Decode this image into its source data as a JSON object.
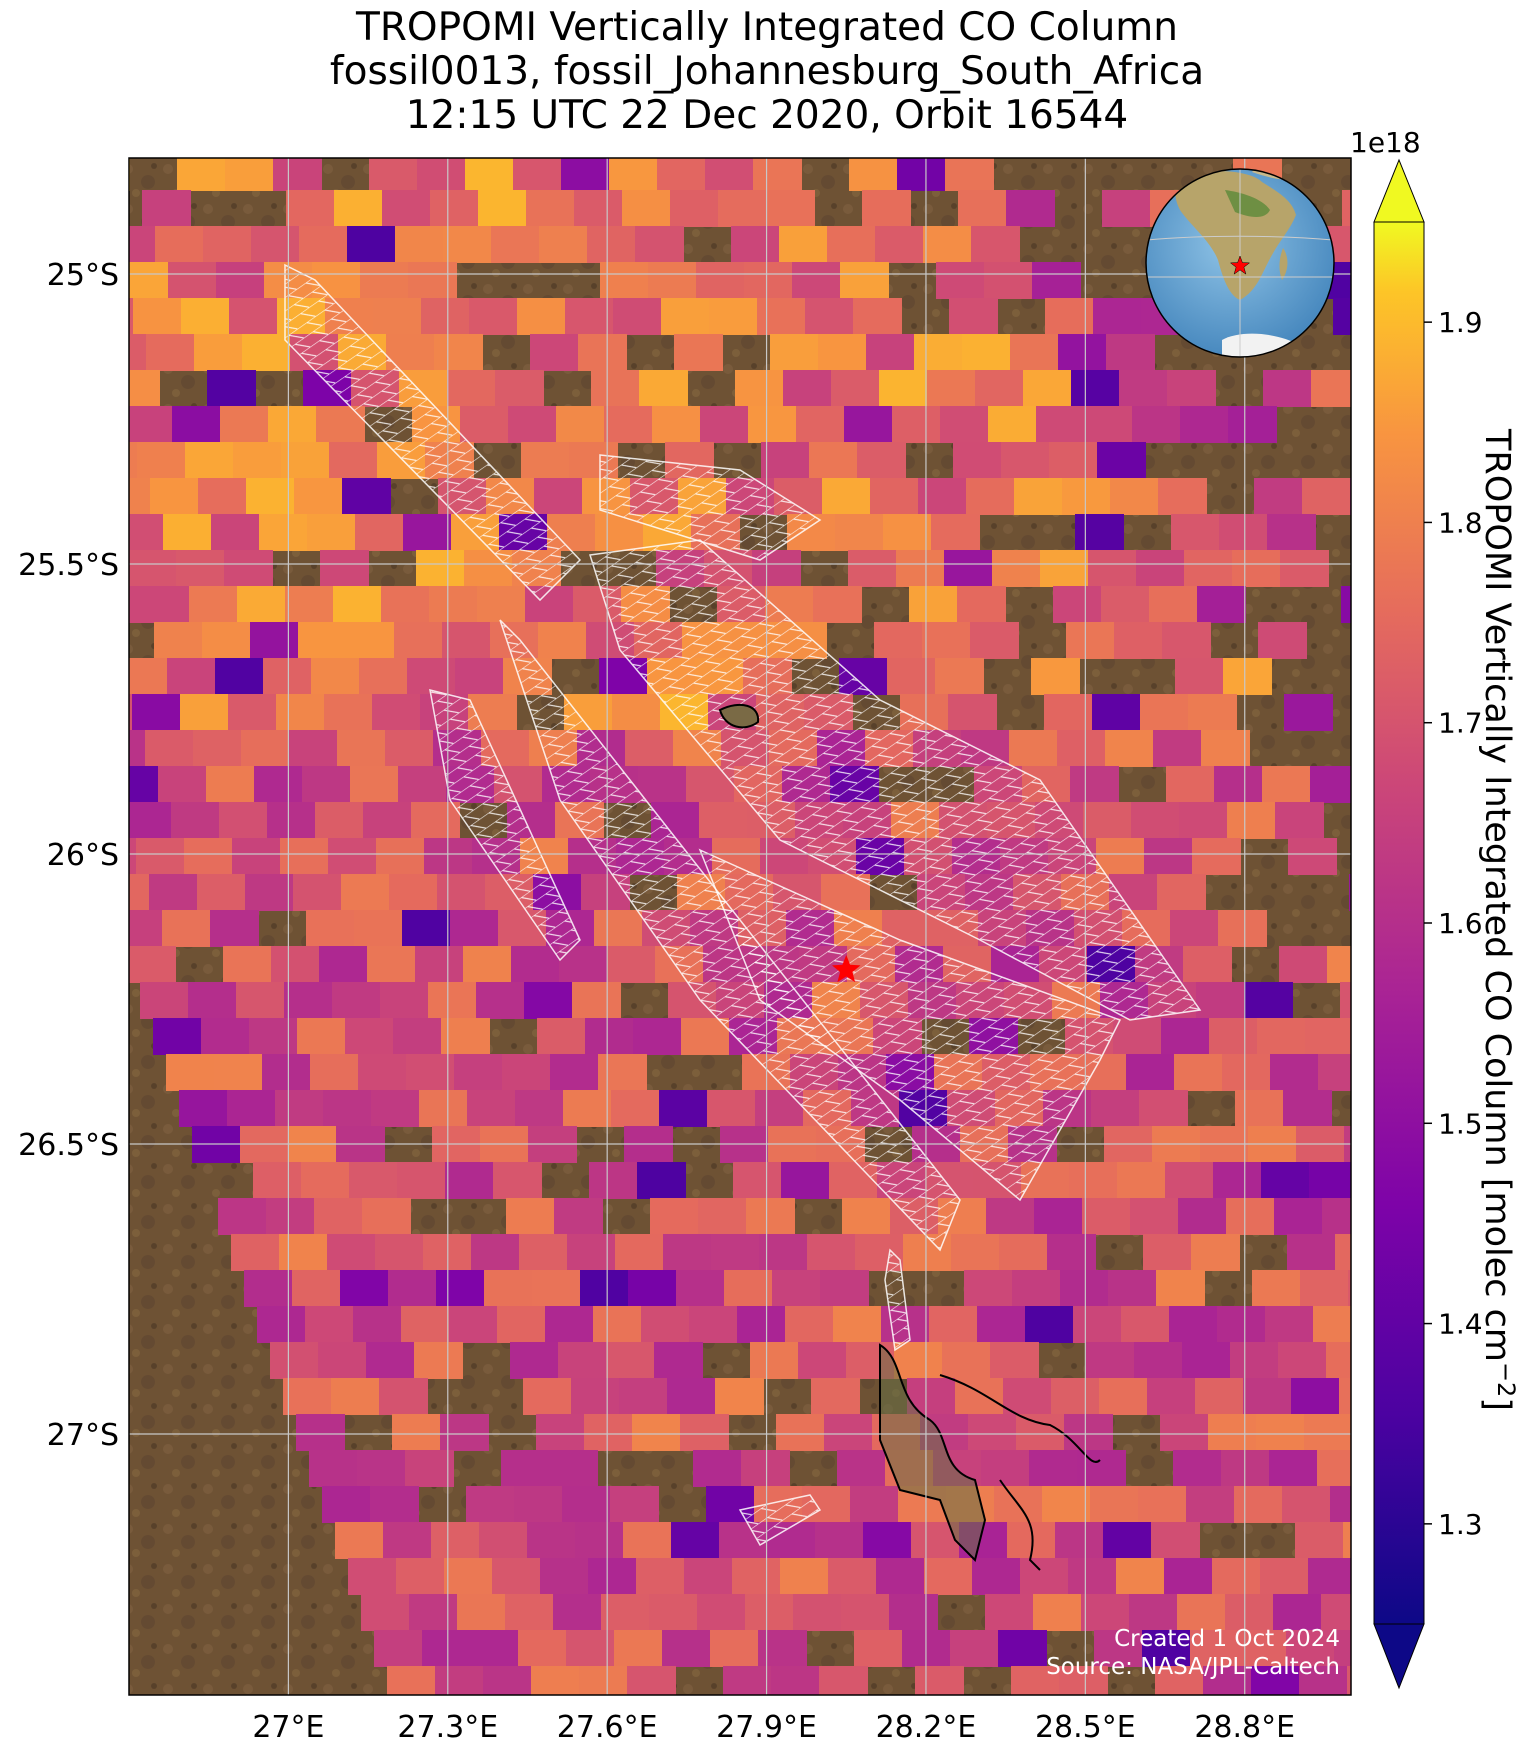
{
  "title": {
    "line1": "TROPOMI Vertically Integrated CO Column",
    "line2": "fossil0013, fossil_Johannesburg_South_Africa",
    "line3": "12:15 UTC 22 Dec 2020, Orbit 16544"
  },
  "map": {
    "lon_ticks": [
      "27°E",
      "27.3°E",
      "27.6°E",
      "27.9°E",
      "28.2°E",
      "28.5°E",
      "28.8°E"
    ],
    "lat_ticks": [
      "25°S",
      "25.5°S",
      "26°S",
      "26.5°S",
      "27°S"
    ],
    "lon_values": [
      27.0,
      27.3,
      27.6,
      27.9,
      28.2,
      28.5,
      28.8
    ],
    "lat_values": [
      -25.0,
      -25.5,
      -26.0,
      -26.5,
      -27.0
    ],
    "lon_range": [
      26.7,
      29.0
    ],
    "lat_range": [
      -27.45,
      -24.8
    ],
    "target_marker": "red-star",
    "target_lon": 28.05,
    "target_lat": -26.2,
    "credit_line1": "Created 1 Oct 2024",
    "credit_line2": "Source: NASA/JPL-Caltech",
    "colors": {
      "background_land": "#6b4f33",
      "gridlines": "#c8c8c8",
      "star": "#ff0000",
      "mesh": "#ffffff"
    }
  },
  "inset_globe": {
    "description_icon": "globe-africa-icon",
    "marker": "red-star"
  },
  "colorbar": {
    "label": "TROPOMI Vertically Integrated CO Column [molec cm",
    "label_sup": "−2",
    "label_end": "]",
    "exponent": "1e18",
    "ticks": [
      "1.3",
      "1.4",
      "1.5",
      "1.6",
      "1.7",
      "1.8",
      "1.9"
    ],
    "tick_values": [
      1.3,
      1.4,
      1.5,
      1.6,
      1.7,
      1.8,
      1.9
    ],
    "range": [
      1.25,
      1.95
    ],
    "colormap": "plasma",
    "extend": "both"
  }
}
